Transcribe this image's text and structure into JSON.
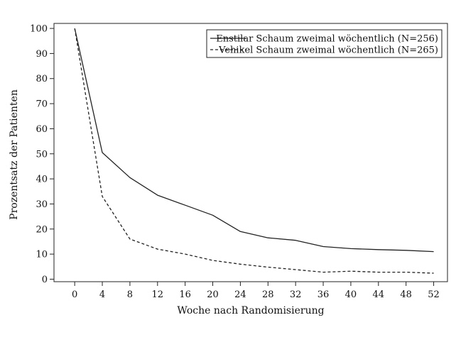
{
  "chart_data": {
    "type": "line",
    "title": "",
    "xlabel": "Woche nach Randomisierung",
    "ylabel": "Prozentsatz der Patienten",
    "x_ticks": [
      0,
      4,
      8,
      12,
      16,
      20,
      24,
      28,
      32,
      36,
      40,
      44,
      48,
      52
    ],
    "y_ticks": [
      0,
      10,
      20,
      30,
      40,
      50,
      60,
      70,
      80,
      90,
      100
    ],
    "xlim": [
      -3,
      54
    ],
    "ylim": [
      -1,
      102
    ],
    "grid": false,
    "legend_position": "top-right",
    "series": [
      {
        "name": "Enstilar Schaum zweimal wöchentlich (N=256)",
        "style": "solid",
        "color": "#222222",
        "x": [
          0,
          4,
          8,
          12,
          16,
          20,
          24,
          28,
          32,
          36,
          40,
          44,
          48,
          52
        ],
        "y": [
          100,
          50.5,
          40.5,
          33.5,
          29.5,
          25.5,
          19,
          16.5,
          15.5,
          13,
          12.2,
          11.8,
          11.5,
          11
        ]
      },
      {
        "name": "Vehikel Schaum zweimal wöchentlich (N=265)",
        "style": "dashed",
        "color": "#222222",
        "x": [
          0,
          4,
          8,
          12,
          16,
          20,
          24,
          28,
          32,
          36,
          40,
          44,
          48,
          52
        ],
        "y": [
          100,
          33,
          16,
          12,
          10,
          7.5,
          6,
          4.8,
          3.8,
          2.8,
          3.2,
          2.8,
          2.8,
          2.4
        ]
      }
    ]
  }
}
